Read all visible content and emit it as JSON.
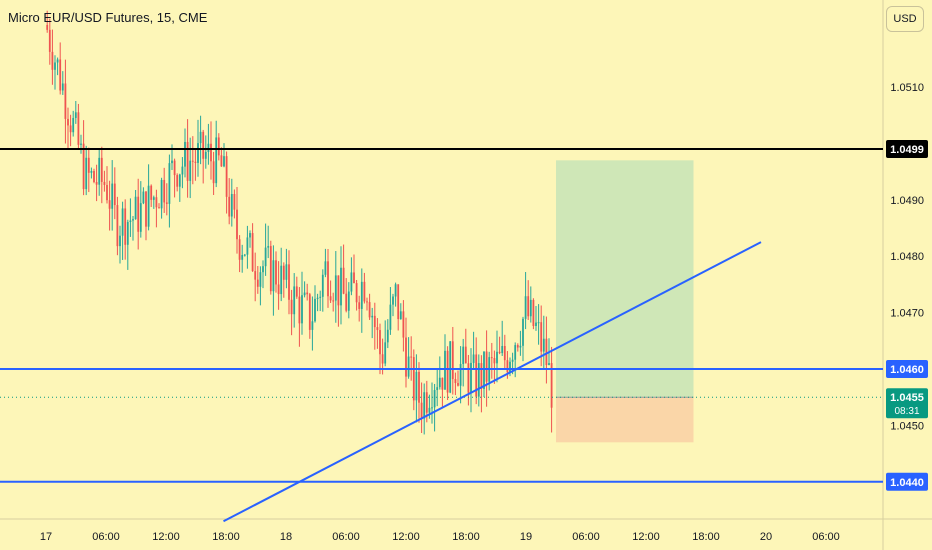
{
  "header": {
    "title": "Micro EUR/USD Futures, 15, CME",
    "currency_button": "USD"
  },
  "colors": {
    "background": "#fdf6b8",
    "up": "#26a69a",
    "down": "#ef5350",
    "black_line": "#000000",
    "blue_line": "#2962ff",
    "target_zone": "#c7e4b6",
    "stop_zone": "#f9d3a6",
    "price_tag": "#089981"
  },
  "chart_data": {
    "type": "candlestick",
    "symbol": "Micro EUR/USD Futures",
    "interval": "15",
    "exchange": "CME",
    "y_ticks": [
      "1.0510",
      "1.0490",
      "1.0480",
      "1.0470",
      "1.0450"
    ],
    "x_ticks": [
      "17",
      "06:00",
      "12:00",
      "18:00",
      "18",
      "06:00",
      "12:00",
      "18:00",
      "19",
      "06:00",
      "12:00",
      "18:00",
      "20",
      "06:00"
    ],
    "ylim": [
      1.0433,
      1.0532
    ],
    "grid": false,
    "horizontal_lines": [
      {
        "label": "1.0499",
        "price": 1.0499,
        "color": "#000000"
      },
      {
        "label": "1.0460",
        "price": 1.046,
        "color": "#2962ff"
      },
      {
        "label": "1.0440",
        "price": 1.044,
        "color": "#2962ff"
      }
    ],
    "current_price": {
      "label": "1.0455",
      "countdown": "08:31",
      "price": 1.0455
    },
    "trendline": {
      "from": {
        "x": "17 17:45",
        "price": 1.0433
      },
      "to": {
        "x": "19 23:30",
        "price": 1.04825
      }
    },
    "long_position": {
      "entry": 1.0455,
      "target": 1.0497,
      "stop": 1.0447,
      "from": "19 03:00",
      "to": "19 16:45"
    },
    "price_path": [
      [
        "17 00:00",
        1.0521
      ],
      [
        "17 02:00",
        1.0508
      ],
      [
        "17 04:00",
        1.0494
      ],
      [
        "17 06:00",
        1.0493
      ],
      [
        "17 07:00",
        1.0486
      ],
      [
        "17 09:00",
        1.0487
      ],
      [
        "17 11:00",
        1.0491
      ],
      [
        "17 13:00",
        1.0496
      ],
      [
        "17 16:00",
        1.0498
      ],
      [
        "17 17:30",
        1.0496
      ],
      [
        "17 19:00",
        1.0484
      ],
      [
        "17 21:00",
        1.0479
      ],
      [
        "17 23:00",
        1.0477
      ],
      [
        "18 01:00",
        1.0472
      ],
      [
        "18 02:30",
        1.0469
      ],
      [
        "18 04:00",
        1.0478
      ],
      [
        "18 06:00",
        1.0472
      ],
      [
        "18 08:00",
        1.0476
      ],
      [
        "18 09:30",
        1.0462
      ],
      [
        "18 11:00",
        1.0473
      ],
      [
        "18 12:30",
        1.0458
      ],
      [
        "18 13:30",
        1.0454
      ],
      [
        "18 15:00",
        1.0459
      ],
      [
        "18 17:00",
        1.0461
      ],
      [
        "18 19:00",
        1.0458
      ],
      [
        "18 20:30",
        1.046
      ],
      [
        "18 22:00",
        1.0462
      ],
      [
        "19 00:00",
        1.047
      ],
      [
        "19 01:00",
        1.0467
      ],
      [
        "19 02:00",
        1.0462
      ],
      [
        "19 02:45",
        1.0455
      ]
    ]
  }
}
